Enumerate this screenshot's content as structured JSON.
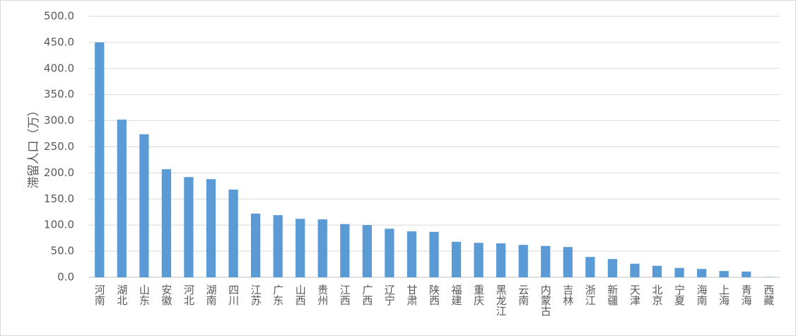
{
  "chart_data": {
    "type": "bar",
    "ylabel": "滞留人口（万）",
    "categories": [
      "河南",
      "湖北",
      "山东",
      "安徽",
      "河北",
      "湖南",
      "四川",
      "江苏",
      "广东",
      "山西",
      "贵州",
      "江西",
      "广西",
      "辽宁",
      "甘肃",
      "陕西",
      "福建",
      "重庆",
      "黑龙江",
      "云南",
      "内蒙古",
      "吉林",
      "浙江",
      "新疆",
      "天津",
      "北京",
      "宁夏",
      "海南",
      "上海",
      "青海",
      "西藏"
    ],
    "values": [
      450,
      302,
      274,
      207,
      192,
      188,
      168,
      122,
      119,
      112,
      111,
      102,
      100,
      93,
      88,
      87,
      68,
      66,
      65,
      62,
      60,
      58,
      39,
      35,
      26,
      22,
      18,
      16,
      12,
      11,
      0.5
    ],
    "color": "#5b9bd5",
    "ylim": [
      0,
      500
    ],
    "yticks": [
      {
        "value": 0,
        "label": "0.0"
      },
      {
        "value": 50,
        "label": "50.0"
      },
      {
        "value": 100,
        "label": "100.0"
      },
      {
        "value": 150,
        "label": "150.0"
      },
      {
        "value": 200,
        "label": "200.0"
      },
      {
        "value": 250,
        "label": "250.0"
      },
      {
        "value": 300,
        "label": "300.0"
      },
      {
        "value": 350,
        "label": "350.0"
      },
      {
        "value": 400,
        "label": "400.0"
      },
      {
        "value": 450,
        "label": "450.0"
      },
      {
        "value": 500,
        "label": "500.0"
      }
    ],
    "grid": true
  }
}
